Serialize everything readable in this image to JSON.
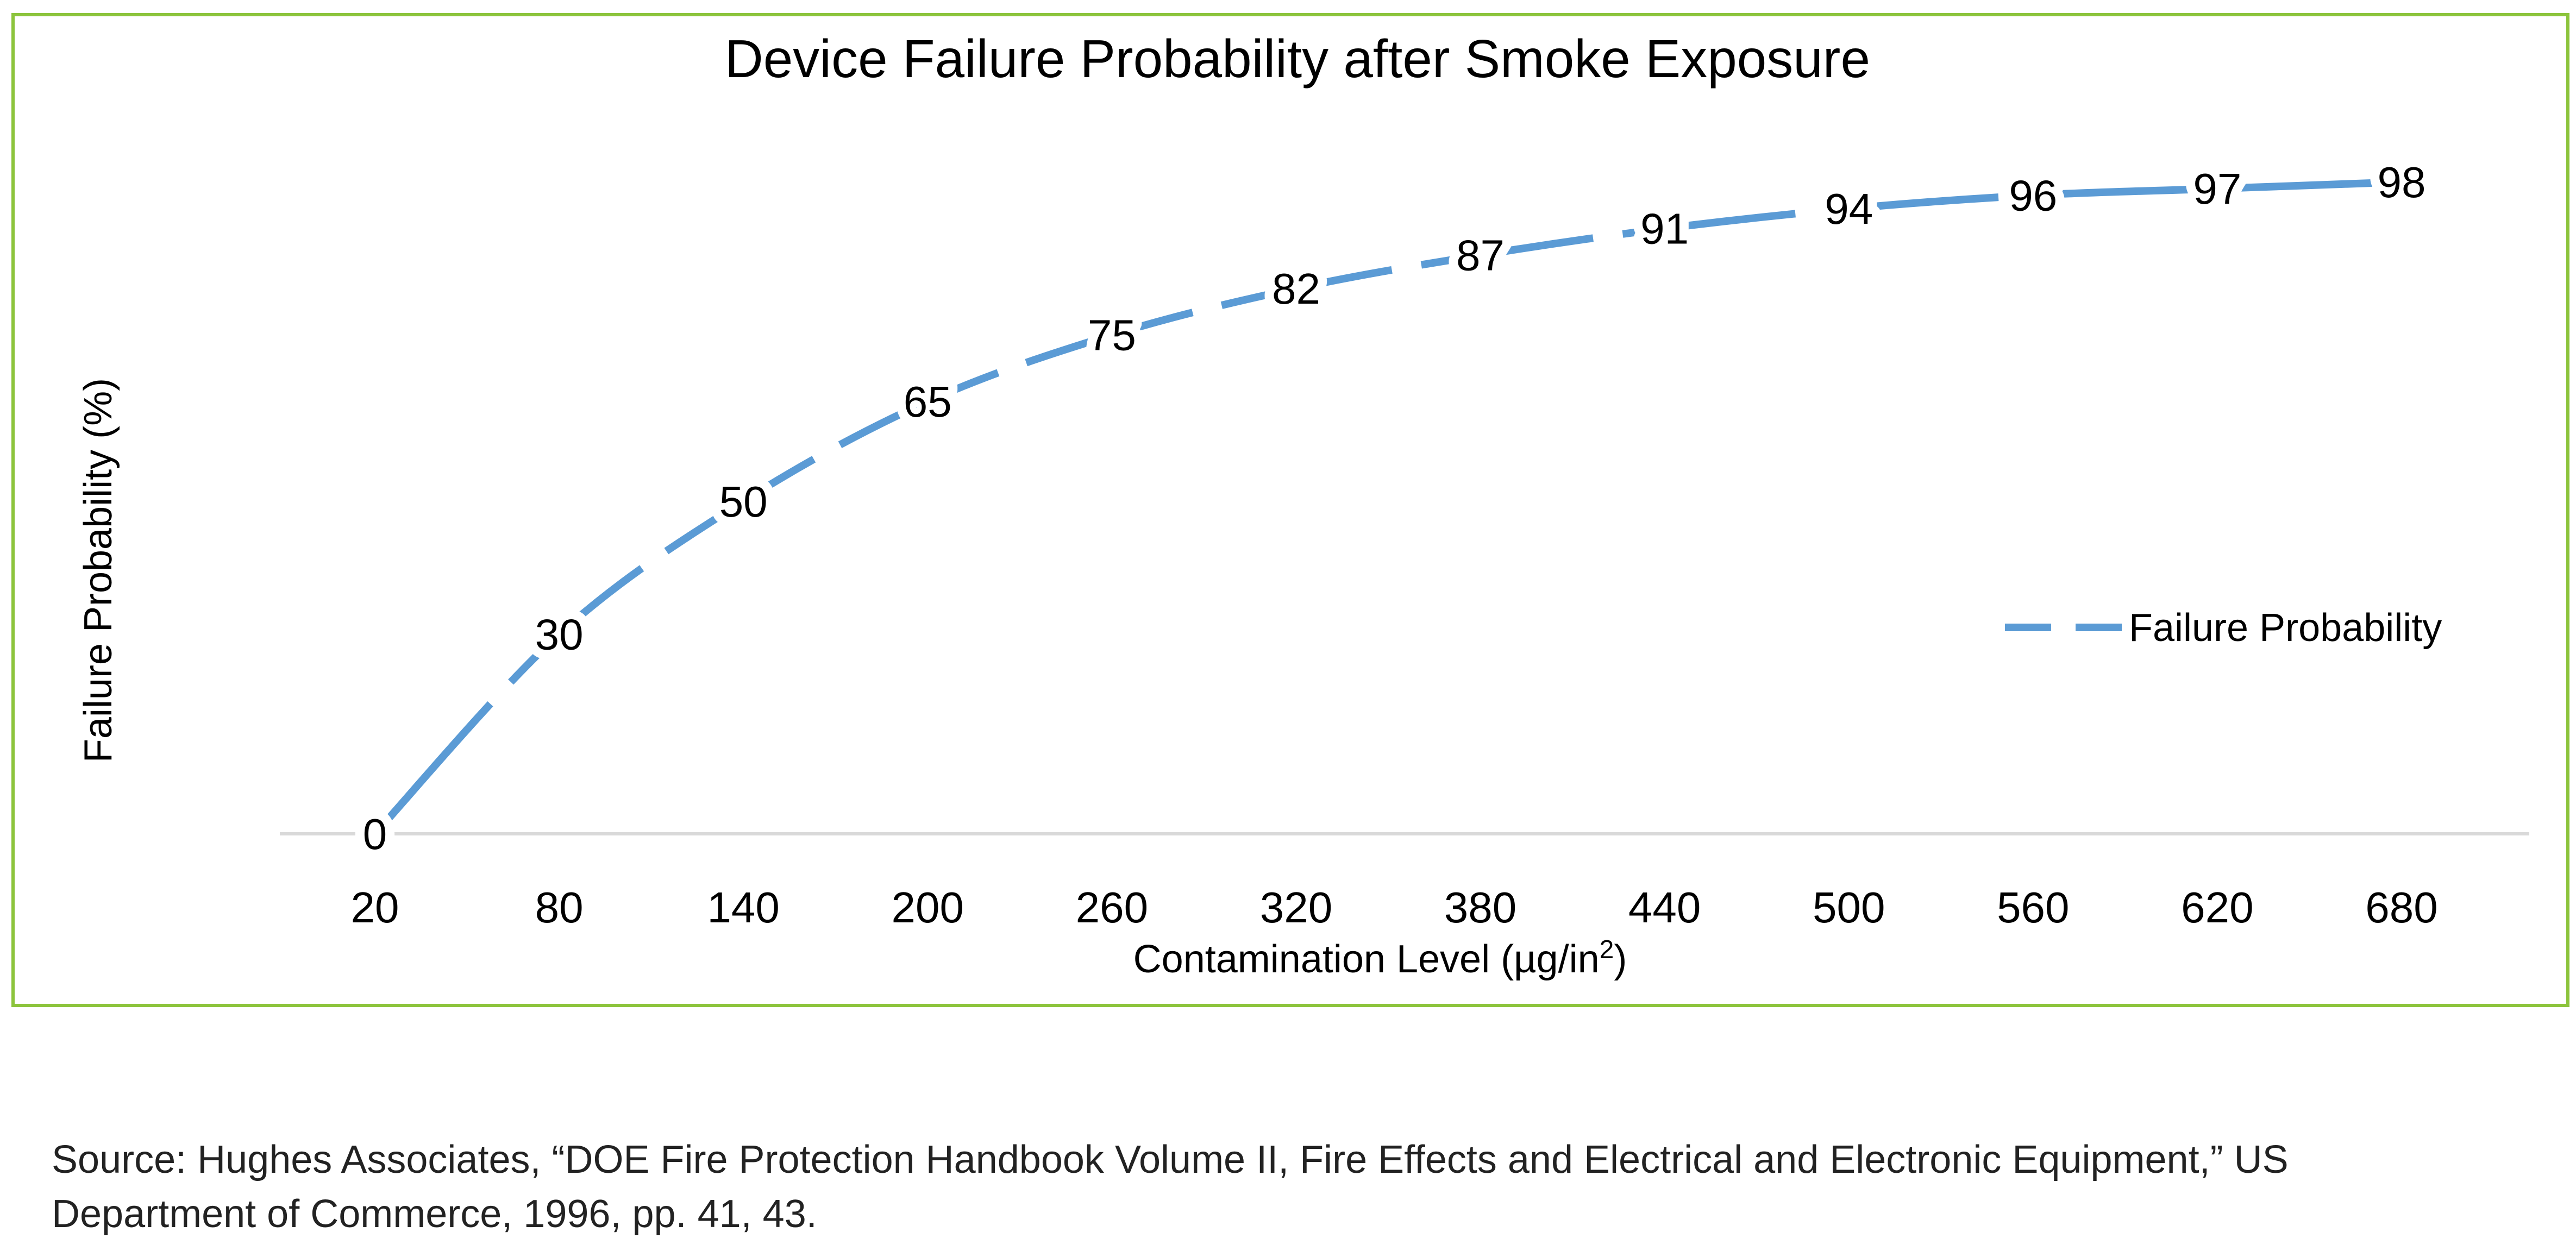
{
  "chart_data": {
    "type": "line",
    "title": "Device Failure Probability after Smoke Exposure",
    "xlabel": "Contamination Level (µg/in",
    "xlabel_superscript": "2",
    "xlabel_suffix": ")",
    "ylabel": "Failure Probability (%)",
    "categories": [
      "20",
      "80",
      "140",
      "200",
      "260",
      "320",
      "380",
      "440",
      "500",
      "560",
      "620",
      "680"
    ],
    "series": [
      {
        "name": "Failure Probability",
        "values": [
          0,
          30,
          50,
          65,
          75,
          82,
          87,
          91,
          94,
          96,
          97,
          98
        ],
        "color": "#5b9bd5",
        "style": "dashed",
        "smoothed": true
      }
    ],
    "ylim": [
      0,
      100
    ],
    "data_labels": true,
    "grid": false,
    "legend_position": "right"
  },
  "colors": {
    "frame_border": "#8cc43c",
    "axis_line": "#d9d9d9",
    "text": "#000000"
  },
  "source_note": {
    "line1": "Source: Hughes Associates, “DOE Fire Protection Handbook Volume II, Fire Effects and Electrical and Electronic Equipment,” US",
    "line2": "Department of Commerce, 1996, pp. 41, 43."
  }
}
